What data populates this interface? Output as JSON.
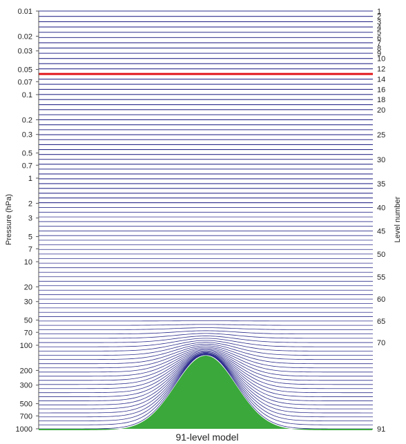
{
  "title": "91-level model",
  "left_axis_label": "Pressure (hPa)",
  "right_axis_label": "Level number",
  "pressure_ticks": [
    "0.01",
    "0.02",
    "0.03",
    "0.05",
    "0.07",
    "0.1",
    "0.2",
    "0.3",
    "0.5",
    "0.7",
    "1",
    "2",
    "3",
    "5",
    "7",
    "10",
    "20",
    "30",
    "50",
    "70",
    "100",
    "200",
    "300",
    "500",
    "700",
    "1000"
  ],
  "level_ticks": [
    "1",
    "2",
    "3",
    "4",
    "5",
    "6",
    "7",
    "8",
    "9",
    "10",
    "12",
    "14",
    "16",
    "18",
    "20",
    "25",
    "30",
    "35",
    "40",
    "45",
    "50",
    "55",
    "60",
    "65",
    "70",
    "91"
  ],
  "level_count": 91,
  "highlighted_level": 13,
  "colors": {
    "level_line": "#2b2b8c",
    "highlight": "#e0161b",
    "orography": "#3aa83a",
    "axis": "#555555"
  },
  "chart_data": {
    "type": "diagram",
    "title": "91-level model",
    "y_axis": {
      "label": "Pressure (hPa)",
      "scale": "log",
      "range": [
        0.01,
        1000
      ],
      "ticks": [
        0.01,
        0.02,
        0.03,
        0.05,
        0.07,
        0.1,
        0.2,
        0.3,
        0.5,
        0.7,
        1,
        2,
        3,
        5,
        7,
        10,
        20,
        30,
        50,
        70,
        100,
        200,
        300,
        500,
        700,
        1000
      ]
    },
    "right_axis": {
      "label": "Level number",
      "ticks": [
        1,
        2,
        3,
        4,
        5,
        6,
        7,
        8,
        9,
        10,
        12,
        14,
        16,
        18,
        20,
        25,
        30,
        35,
        40,
        45,
        50,
        55,
        60,
        65,
        70,
        91
      ]
    },
    "levels": 91,
    "highlighted_level": 13
  }
}
